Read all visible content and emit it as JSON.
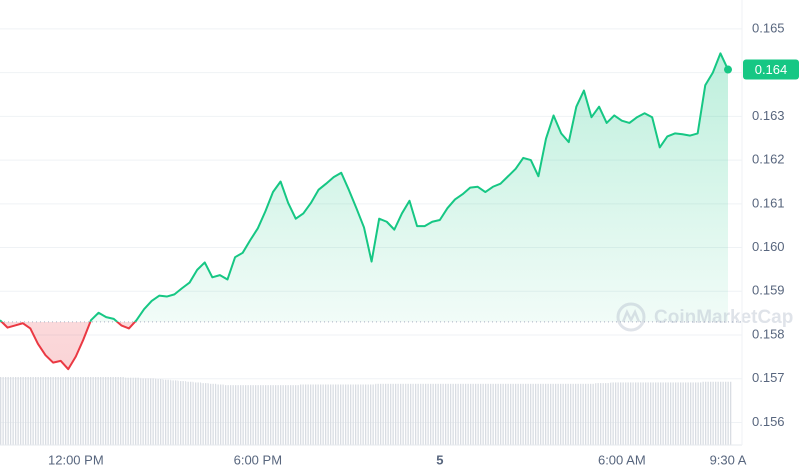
{
  "chart_data": {
    "type": "line",
    "watermark": "CoinMarketCap",
    "categories": [
      null,
      null,
      null,
      null,
      null,
      null,
      null,
      null,
      null,
      null,
      "12:00 PM",
      null,
      null,
      null,
      null,
      null,
      null,
      null,
      null,
      null,
      null,
      null,
      null,
      null,
      null,
      null,
      null,
      null,
      null,
      null,
      null,
      null,
      null,
      null,
      "6:00 PM",
      null,
      null,
      null,
      null,
      null,
      null,
      null,
      null,
      null,
      null,
      null,
      null,
      null,
      null,
      null,
      null,
      null,
      null,
      null,
      null,
      null,
      null,
      null,
      "5",
      null,
      null,
      null,
      null,
      null,
      null,
      null,
      null,
      null,
      null,
      null,
      null,
      null,
      null,
      null,
      null,
      null,
      null,
      null,
      null,
      null,
      null,
      null,
      "6:00 AM",
      null,
      null,
      null,
      null,
      null,
      null,
      null,
      null,
      null,
      null,
      null,
      null,
      null,
      "9:30 A"
    ],
    "values": [
      0.15834,
      0.15817,
      0.15822,
      0.15827,
      0.15815,
      0.1578,
      0.15754,
      0.15737,
      0.15741,
      0.15722,
      0.15751,
      0.1579,
      0.15834,
      0.15851,
      0.15841,
      0.15837,
      0.15822,
      0.15815,
      0.15834,
      0.15859,
      0.15878,
      0.1589,
      0.15888,
      0.15893,
      0.15907,
      0.1592,
      0.15949,
      0.15966,
      0.15932,
      0.15937,
      0.15927,
      0.15978,
      0.15988,
      0.16017,
      0.16044,
      0.16083,
      0.16127,
      0.16151,
      0.16102,
      0.16066,
      0.16078,
      0.16102,
      0.16132,
      0.16146,
      0.16161,
      0.16171,
      0.16132,
      0.1609,
      0.16046,
      0.15968,
      0.16066,
      0.16059,
      0.16041,
      0.16078,
      0.16107,
      0.16049,
      0.16049,
      0.16059,
      0.16063,
      0.1609,
      0.1611,
      0.16122,
      0.16137,
      0.16139,
      0.16127,
      0.16139,
      0.16146,
      0.16163,
      0.1618,
      0.16205,
      0.162,
      0.16163,
      0.16249,
      0.16302,
      0.16261,
      0.16241,
      0.16322,
      0.16359,
      0.16298,
      0.16322,
      0.16285,
      0.16302,
      0.1629,
      0.16285,
      0.16298,
      0.16307,
      0.16298,
      0.16229,
      0.16254,
      0.16261,
      0.16259,
      0.16256,
      0.16261,
      0.16371,
      0.164,
      0.16444,
      0.16407
    ],
    "volume": [
      100,
      100,
      100,
      100,
      100,
      100,
      100,
      100,
      100,
      100,
      100,
      100,
      100,
      100,
      100,
      100,
      100,
      99,
      99,
      98,
      98,
      97,
      96,
      95,
      94,
      93,
      92,
      91,
      90,
      89,
      88,
      88,
      88,
      88,
      88,
      88,
      88,
      88,
      88,
      88,
      89,
      89,
      89,
      89,
      89,
      89,
      89,
      89,
      89,
      89,
      90,
      90,
      90,
      90,
      90,
      90,
      90,
      90,
      90,
      90,
      90,
      90,
      90,
      90,
      90,
      90,
      90,
      90,
      90,
      90,
      90,
      90,
      90,
      90,
      90,
      90,
      90,
      90,
      90,
      91,
      91,
      92,
      92,
      92,
      92,
      92,
      92,
      92,
      92,
      92,
      92,
      92,
      92,
      93,
      93,
      93,
      93
    ],
    "baseline": 0.1583,
    "last_label": "0.164",
    "up_color": "#16c784",
    "down_color": "#ea3943",
    "ylim": [
      0.1548,
      0.16566
    ],
    "yticks": [
      0.156,
      0.157,
      0.158,
      0.159,
      {
        "value": 0.16,
        "label": "0.160"
      },
      0.161,
      0.162,
      0.163,
      0.164,
      0.165
    ],
    "grid": true
  }
}
